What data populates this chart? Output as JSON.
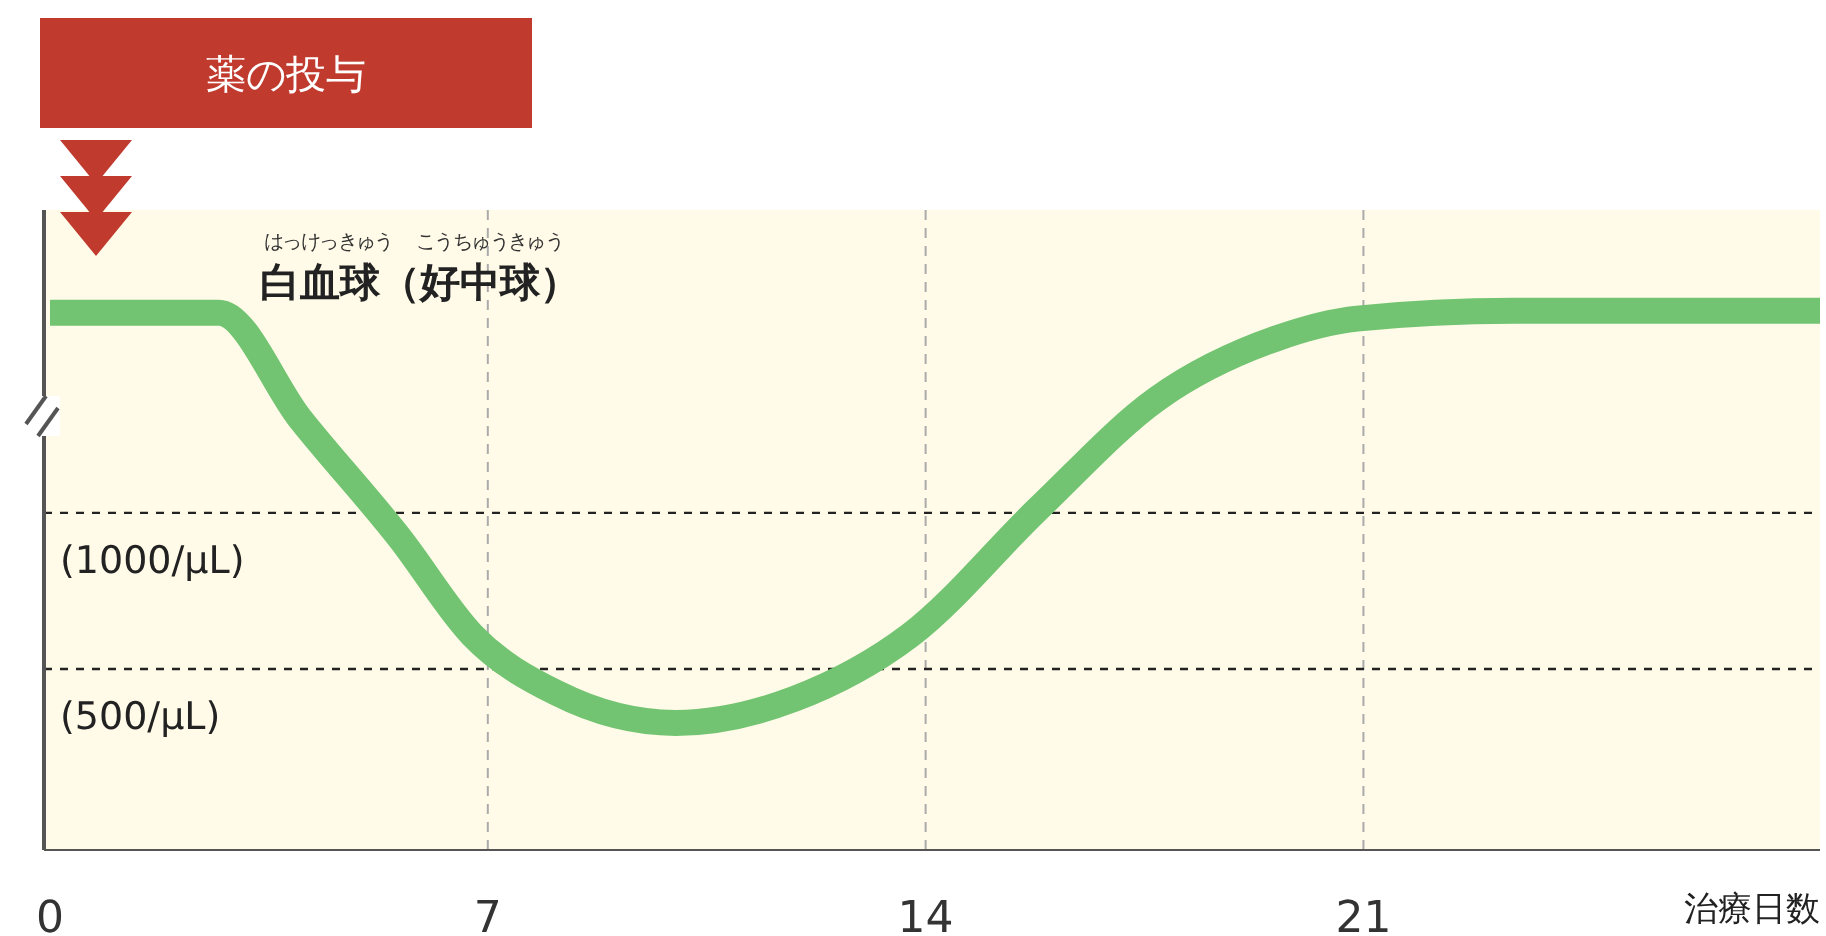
{
  "chart_data": {
    "type": "line",
    "title": "薬の投与",
    "xlabel": "治療日数",
    "annotations": [
      "白血球（好中球）",
      "はっけっきゅう",
      "こうちゅうきゅう"
    ],
    "x": [
      0,
      2.7,
      4,
      5.6,
      6.75,
      8.1,
      10,
      11.9,
      13.76,
      15.8,
      17.7,
      19.6,
      20.9,
      23.4,
      28.3
    ],
    "series": [
      {
        "color": "#72c472",
        "values": [
          1641,
          1641,
          1301,
          917,
          609,
          423,
          327,
          404,
          609,
          1013,
          1365,
          1558,
          1622,
          1647,
          1647
        ]
      }
    ],
    "xlim": [
      0,
      28.3
    ],
    "xticks": [
      0,
      7,
      14,
      21
    ],
    "ylim": [
      -80,
      1970
    ],
    "tick_labels": "x",
    "grid": "x",
    "line_style": "solid",
    "marker": "none",
    "ref_lines": [
      {
        "axis": "y",
        "value": 1000,
        "label": "(1000/μL)",
        "color": "#222222",
        "line_style": "dashed"
      },
      {
        "axis": "y",
        "value": 500,
        "label": "(500/μL)",
        "color": "#222222",
        "line_style": "dashed"
      }
    ]
  }
}
